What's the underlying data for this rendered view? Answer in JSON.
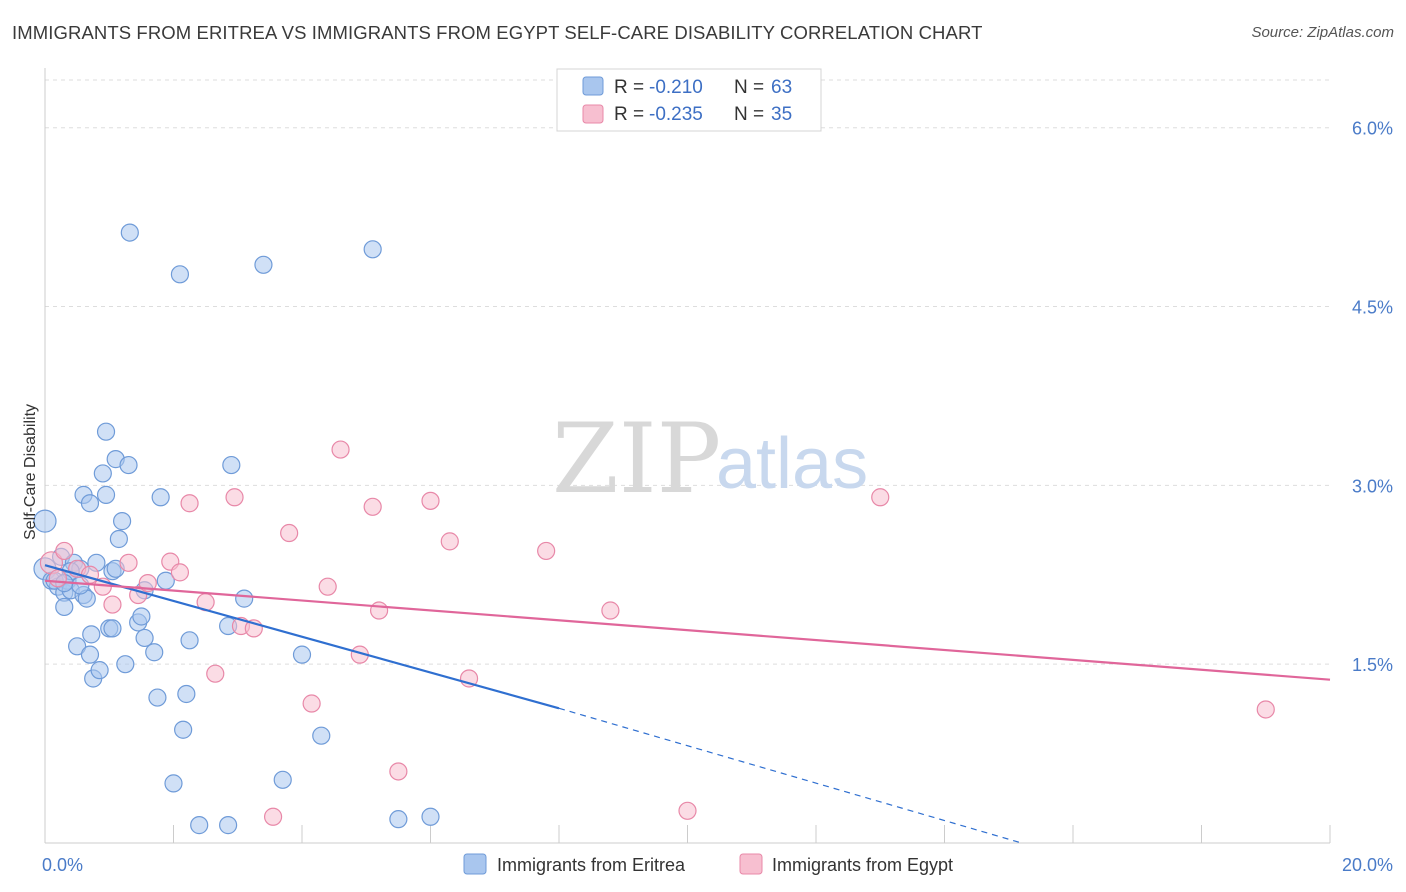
{
  "title": "IMMIGRANTS FROM ERITREA VS IMMIGRANTS FROM EGYPT SELF-CARE DISABILITY CORRELATION CHART",
  "source": "Source: ZipAtlas.com",
  "watermark": {
    "zip": "ZIP",
    "atlas": "atlas"
  },
  "chart_data": {
    "type": "scatter",
    "title": "IMMIGRANTS FROM ERITREA VS IMMIGRANTS FROM EGYPT SELF-CARE DISABILITY CORRELATION CHART",
    "ylabel": "Self-Care Disability",
    "xlim": [
      0,
      20
    ],
    "ylim": [
      0,
      6.4
    ],
    "x_tick_labels": {
      "left": "0.0%",
      "right": "20.0%"
    },
    "y_ticks": [
      {
        "value": 1.5,
        "label": "1.5%"
      },
      {
        "value": 3.0,
        "label": "3.0%"
      },
      {
        "value": 4.5,
        "label": "4.5%"
      },
      {
        "value": 6.0,
        "label": "6.0%"
      }
    ],
    "grid": true,
    "legend_position": "top-center",
    "legend": [
      {
        "r_label": "R =",
        "r_value": "-0.210",
        "n_label": "N =",
        "n_value": "63",
        "color": "#a9c6ee",
        "edge": "#6f9bd8"
      },
      {
        "r_label": "R =",
        "r_value": "-0.235",
        "n_label": "N =",
        "n_value": "35",
        "color": "#f7bfd0",
        "edge": "#e888a8"
      }
    ],
    "series": [
      {
        "name": "Immigrants from Eritrea",
        "color": "#a9c6ee",
        "edge": "#6f9bd8",
        "line_color": "#2f6fd0",
        "trend": {
          "x0": 0,
          "y0": 2.33,
          "x1": 8.0,
          "y1": 1.13,
          "dash_to_x": 15.2,
          "dash_to_y": 0.0
        },
        "points": [
          [
            0.0,
            2.7
          ],
          [
            0.0,
            2.3
          ],
          [
            0.1,
            2.2
          ],
          [
            0.2,
            2.15
          ],
          [
            0.25,
            2.4
          ],
          [
            0.3,
            2.1
          ],
          [
            0.3,
            1.98
          ],
          [
            0.35,
            2.2
          ],
          [
            0.4,
            2.12
          ],
          [
            0.45,
            2.35
          ],
          [
            0.5,
            1.65
          ],
          [
            0.55,
            2.3
          ],
          [
            0.6,
            2.08
          ],
          [
            0.6,
            2.92
          ],
          [
            0.65,
            2.05
          ],
          [
            0.7,
            1.58
          ],
          [
            0.7,
            2.85
          ],
          [
            0.72,
            1.75
          ],
          [
            0.75,
            1.38
          ],
          [
            0.8,
            2.35
          ],
          [
            0.85,
            1.45
          ],
          [
            0.9,
            3.1
          ],
          [
            0.95,
            2.92
          ],
          [
            0.95,
            3.45
          ],
          [
            1.0,
            1.8
          ],
          [
            1.05,
            2.28
          ],
          [
            1.05,
            1.8
          ],
          [
            1.1,
            3.22
          ],
          [
            1.15,
            2.55
          ],
          [
            1.2,
            2.7
          ],
          [
            1.25,
            1.5
          ],
          [
            1.3,
            3.17
          ],
          [
            1.32,
            5.12
          ],
          [
            1.45,
            1.85
          ],
          [
            1.5,
            1.9
          ],
          [
            1.55,
            2.12
          ],
          [
            1.55,
            1.72
          ],
          [
            1.7,
            1.6
          ],
          [
            1.75,
            1.22
          ],
          [
            1.8,
            2.9
          ],
          [
            1.88,
            2.2
          ],
          [
            2.0,
            0.5
          ],
          [
            2.1,
            4.77
          ],
          [
            2.15,
            0.95
          ],
          [
            2.2,
            1.25
          ],
          [
            2.25,
            1.7
          ],
          [
            2.4,
            0.15
          ],
          [
            2.85,
            0.15
          ],
          [
            2.85,
            1.82
          ],
          [
            2.9,
            3.17
          ],
          [
            3.1,
            2.05
          ],
          [
            3.4,
            4.85
          ],
          [
            3.7,
            0.53
          ],
          [
            4.0,
            1.58
          ],
          [
            4.3,
            0.9
          ],
          [
            5.1,
            4.98
          ],
          [
            5.5,
            0.2
          ],
          [
            6.0,
            0.22
          ],
          [
            0.15,
            2.2
          ],
          [
            0.55,
            2.16
          ],
          [
            0.4,
            2.28
          ],
          [
            1.1,
            2.3
          ],
          [
            0.3,
            2.18
          ]
        ]
      },
      {
        "name": "Immigrants from Egypt",
        "color": "#f7bfd0",
        "edge": "#e888a8",
        "line_color": "#e0669a",
        "trend": {
          "x0": 0,
          "y0": 2.2,
          "x1": 20.0,
          "y1": 1.37
        },
        "points": [
          [
            0.1,
            2.35
          ],
          [
            0.3,
            2.45
          ],
          [
            0.5,
            2.3
          ],
          [
            0.7,
            2.25
          ],
          [
            0.9,
            2.15
          ],
          [
            1.05,
            2.0
          ],
          [
            1.3,
            2.35
          ],
          [
            1.45,
            2.08
          ],
          [
            1.6,
            2.18
          ],
          [
            1.95,
            2.36
          ],
          [
            2.1,
            2.27
          ],
          [
            2.25,
            2.85
          ],
          [
            2.5,
            2.02
          ],
          [
            2.65,
            1.42
          ],
          [
            2.95,
            2.9
          ],
          [
            3.05,
            1.82
          ],
          [
            3.25,
            1.8
          ],
          [
            3.55,
            0.22
          ],
          [
            3.8,
            2.6
          ],
          [
            4.15,
            1.17
          ],
          [
            4.4,
            2.15
          ],
          [
            4.6,
            3.3
          ],
          [
            4.9,
            1.58
          ],
          [
            5.1,
            2.82
          ],
          [
            5.2,
            1.95
          ],
          [
            5.5,
            0.6
          ],
          [
            6.0,
            2.87
          ],
          [
            6.3,
            2.53
          ],
          [
            6.6,
            1.38
          ],
          [
            7.8,
            2.45
          ],
          [
            8.8,
            1.95
          ],
          [
            10.0,
            0.27
          ],
          [
            13.0,
            2.9
          ],
          [
            19.0,
            1.12
          ],
          [
            0.2,
            2.22
          ]
        ]
      }
    ]
  }
}
